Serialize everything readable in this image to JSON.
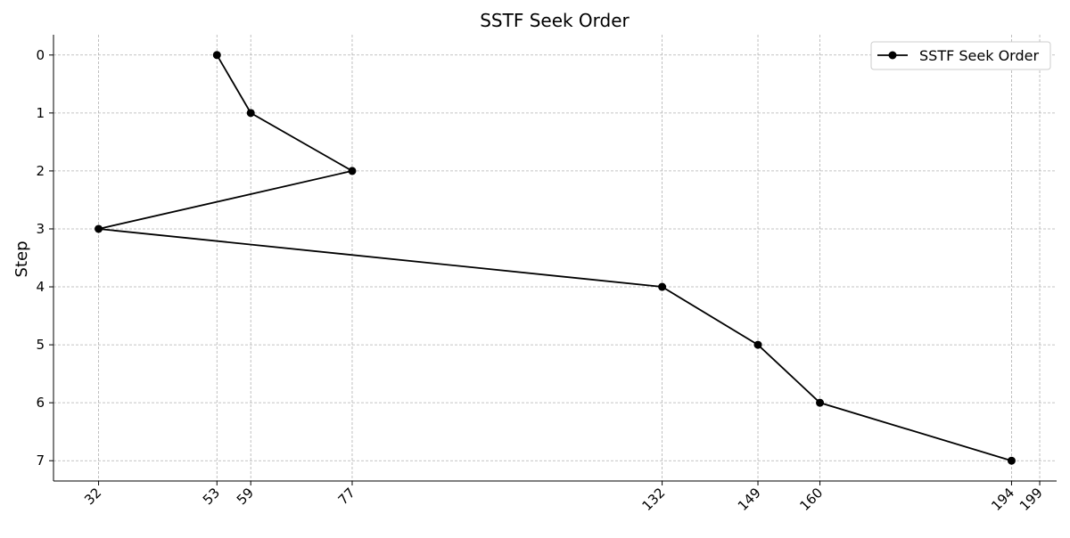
{
  "chart_data": {
    "type": "line",
    "title": "SSTF Seek Order",
    "xlabel": "",
    "ylabel": "Step",
    "x_ticks": [
      32,
      53,
      59,
      77,
      132,
      149,
      160,
      194,
      199
    ],
    "y_ticks": [
      0,
      1,
      2,
      3,
      4,
      5,
      6,
      7
    ],
    "xlim": [
      24,
      202
    ],
    "ylim": [
      7.35,
      -0.35
    ],
    "y_inverted": true,
    "grid": true,
    "legend_position": "top-right",
    "series": [
      {
        "name": "SSTF Seek Order",
        "color": "#000000",
        "marker": "circle",
        "x": [
          53,
          59,
          77,
          32,
          132,
          149,
          160,
          194
        ],
        "y": [
          0,
          1,
          2,
          3,
          4,
          5,
          6,
          7
        ]
      }
    ]
  }
}
